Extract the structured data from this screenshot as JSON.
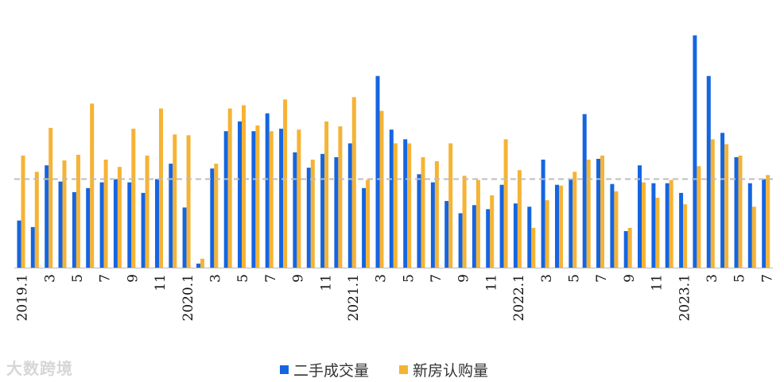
{
  "chart_data": {
    "type": "bar",
    "categories": [
      "2019.1",
      "2",
      "3",
      "4",
      "5",
      "6",
      "7",
      "8",
      "9",
      "10",
      "11",
      "12",
      "2020.1",
      "2",
      "3",
      "4",
      "5",
      "6",
      "7",
      "8",
      "9",
      "10",
      "11",
      "12",
      "2021.1",
      "2",
      "3",
      "4",
      "5",
      "6",
      "7",
      "8",
      "9",
      "10",
      "11",
      "12",
      "2022.1",
      "2",
      "3",
      "4",
      "5",
      "6",
      "7",
      "8",
      "9",
      "10",
      "11",
      "12",
      "2023.1",
      "2",
      "3",
      "4",
      "5",
      "6",
      "7"
    ],
    "tick_labels": [
      "2019.1",
      "",
      "3",
      "",
      "5",
      "",
      "7",
      "",
      "9",
      "",
      "11",
      "",
      "2020.1",
      "",
      "3",
      "",
      "5",
      "",
      "7",
      "",
      "9",
      "",
      "11",
      "",
      "2021.1",
      "",
      "3",
      "",
      "5",
      "",
      "7",
      "",
      "9",
      "",
      "11",
      "",
      "2022.1",
      "",
      "3",
      "",
      "5",
      "",
      "7",
      "",
      "9",
      "",
      "11",
      "",
      "2023.1",
      "",
      "3",
      "",
      "5",
      "",
      "7"
    ],
    "series": [
      {
        "name": "二手成交量",
        "color": "#1565E0",
        "values": [
          58,
          50,
          126,
          106,
          93,
          98,
          105,
          109,
          105,
          92,
          109,
          128,
          74,
          5,
          122,
          168,
          180,
          168,
          190,
          171,
          142,
          123,
          140,
          136,
          153,
          98,
          236,
          170,
          158,
          115,
          105,
          82,
          67,
          77,
          72,
          102,
          79,
          75,
          133,
          102,
          109,
          189,
          134,
          103,
          45,
          126,
          104,
          104,
          92,
          286,
          236,
          166,
          136,
          104,
          109
        ]
      },
      {
        "name": "新房认购量",
        "color": "#F5B335",
        "values": [
          138,
          118,
          172,
          132,
          139,
          202,
          133,
          124,
          171,
          138,
          196,
          164,
          163,
          11,
          128,
          196,
          200,
          175,
          168,
          207,
          170,
          133,
          180,
          174,
          210,
          108,
          193,
          153,
          153,
          136,
          131,
          153,
          113,
          108,
          89,
          158,
          120,
          49,
          83,
          101,
          118,
          133,
          138,
          94,
          49,
          105,
          86,
          108,
          78,
          125,
          158,
          152,
          138,
          75,
          114
        ]
      }
    ],
    "reference_line": 109,
    "ylim": [
      0,
      310
    ],
    "grid": false,
    "legend_position": "bottom-center"
  },
  "watermark": "大数跨境"
}
